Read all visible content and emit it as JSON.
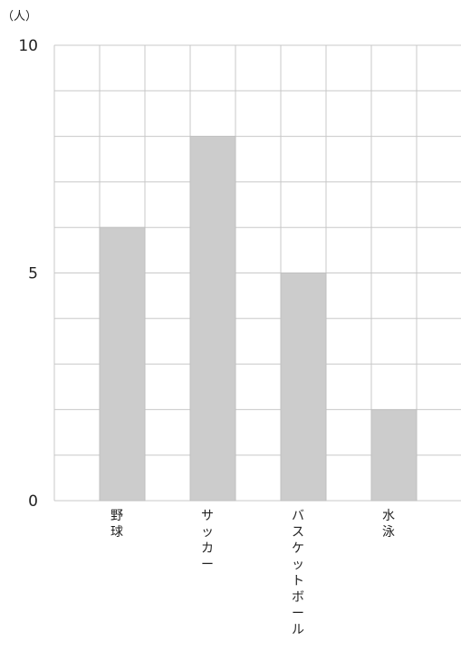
{
  "chart_data": {
    "type": "bar",
    "unit_label": "（人）",
    "categories": [
      "野球",
      "サッカー",
      "バスケットボール",
      "水泳"
    ],
    "values": [
      6,
      8,
      5,
      2
    ],
    "ylim": [
      0,
      10
    ],
    "y_ticks": [
      0,
      5,
      10
    ],
    "y_tick_labels": [
      "0",
      "5",
      "10"
    ],
    "grid": true,
    "title": "",
    "xlabel": "",
    "ylabel": "",
    "bar_color": "#cccccc",
    "grid_color": "#c8c8c8"
  }
}
